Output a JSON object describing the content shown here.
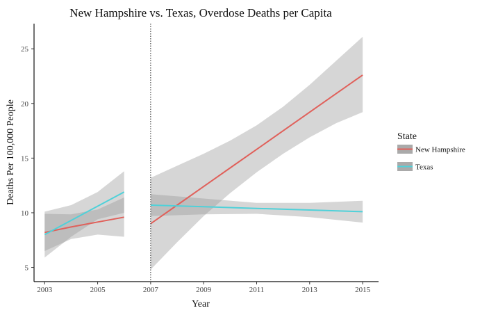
{
  "chart_data": {
    "type": "line",
    "title": "New Hampshire vs. Texas, Overdose Deaths per Capita",
    "xlabel": "Year",
    "ylabel": "Deaths Per 100,000 People",
    "xlim": [
      2002.6,
      2015.6
    ],
    "ylim": [
      3.7,
      27.3
    ],
    "x_ticks": [
      2003,
      2005,
      2007,
      2009,
      2011,
      2013,
      2015
    ],
    "x_tick_labels": [
      "2003",
      "2005",
      "2007",
      "2009",
      "2011",
      "2013",
      "2015"
    ],
    "y_ticks": [
      5,
      10,
      15,
      20,
      25
    ],
    "y_tick_labels": [
      "5",
      "10",
      "15",
      "20",
      "25"
    ],
    "vline": {
      "x": 2007,
      "style": "dotted"
    },
    "legend": {
      "title": "State",
      "position": "right",
      "entries": [
        "New Hampshire",
        "Texas"
      ]
    },
    "series": [
      {
        "name": "New Hampshire",
        "color": "#e0605a",
        "segments": [
          {
            "x": [
              2003,
              2004,
              2005,
              2006
            ],
            "y": [
              8.2,
              8.7,
              9.15,
              9.6
            ],
            "lower": [
              6.5,
              7.6,
              8.0,
              7.8
            ],
            "upper": [
              9.9,
              9.85,
              10.3,
              11.4
            ]
          },
          {
            "x": [
              2007,
              2008,
              2009,
              2010,
              2011,
              2012,
              2013,
              2014,
              2015
            ],
            "y": [
              9.0,
              10.7,
              12.4,
              14.1,
              15.8,
              17.5,
              19.2,
              20.9,
              22.6
            ],
            "lower": [
              4.8,
              7.3,
              9.7,
              11.8,
              13.7,
              15.4,
              16.9,
              18.2,
              19.2
            ],
            "upper": [
              13.2,
              14.3,
              15.4,
              16.6,
              18.0,
              19.7,
              21.7,
              23.9,
              26.1
            ]
          }
        ]
      },
      {
        "name": "Texas",
        "color": "#4fd1d9",
        "segments": [
          {
            "x": [
              2003,
              2004,
              2005,
              2006
            ],
            "y": [
              8.0,
              9.3,
              10.6,
              11.9
            ],
            "lower": [
              5.9,
              7.8,
              9.4,
              10.0
            ],
            "upper": [
              10.1,
              10.7,
              11.9,
              13.8
            ]
          },
          {
            "x": [
              2007,
              2009,
              2011,
              2013,
              2015
            ],
            "y": [
              10.7,
              10.55,
              10.4,
              10.25,
              10.1
            ],
            "lower": [
              9.7,
              9.85,
              9.9,
              9.6,
              9.1
            ],
            "upper": [
              11.7,
              11.3,
              10.9,
              10.9,
              11.1
            ]
          }
        ]
      }
    ]
  }
}
